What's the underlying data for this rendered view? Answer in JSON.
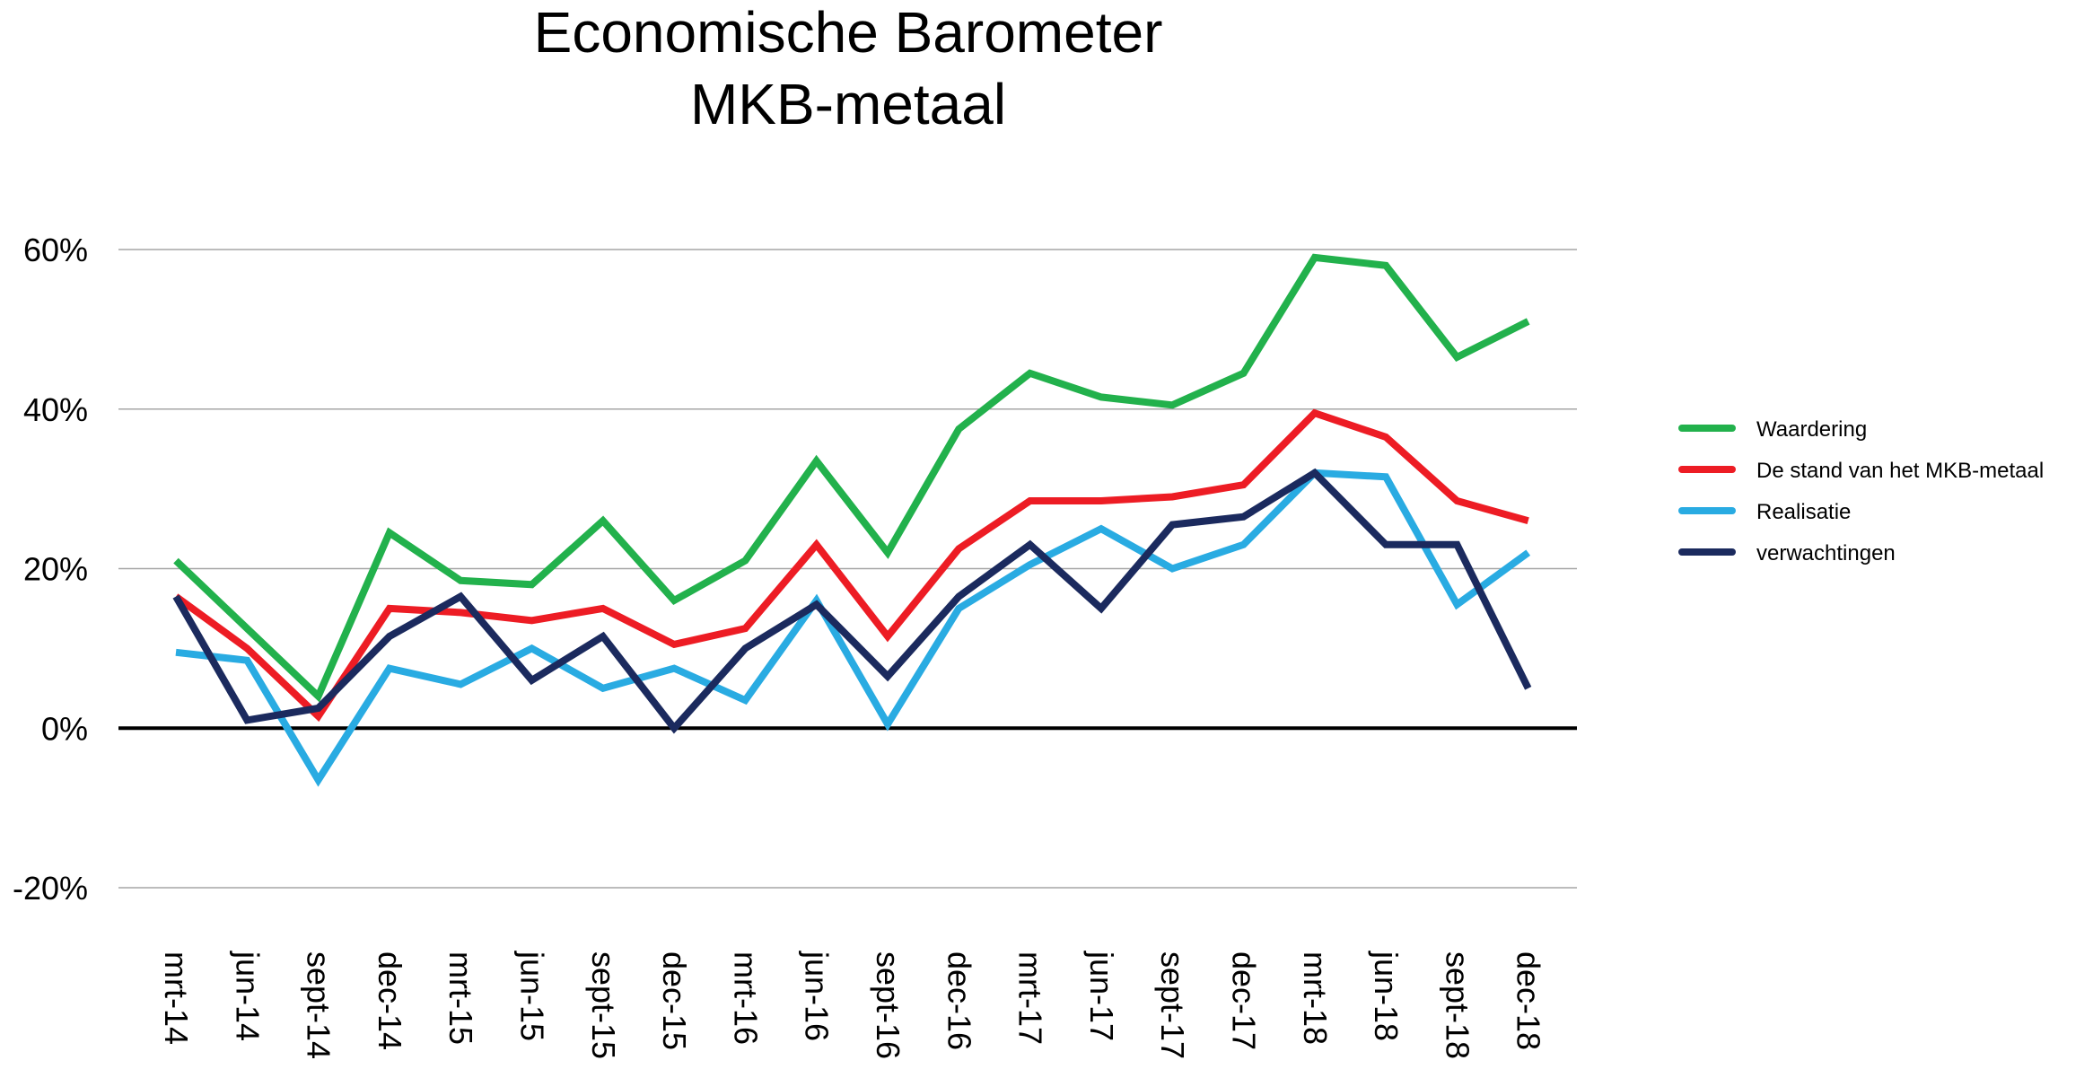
{
  "chart_data": {
    "type": "line",
    "title_lines": [
      "Economische Barometer",
      "MKB-metaal"
    ],
    "xlabel": "",
    "ylabel": "",
    "ylim": [
      -20,
      60
    ],
    "yticks": [
      -20,
      0,
      20,
      40,
      60
    ],
    "ytick_labels": [
      "-20%",
      "0%",
      "20%",
      "40%",
      "60%"
    ],
    "grid": true,
    "legend_position": "right",
    "categories": [
      "mrt-14",
      "jun-14",
      "sept-14",
      "dec-14",
      "mrt-15",
      "jun-15",
      "sept-15",
      "dec-15",
      "mrt-16",
      "jun-16",
      "sept-16",
      "dec-16",
      "mrt-17",
      "jun-17",
      "sept-17",
      "dec-17",
      "mrt-18",
      "jun-18",
      "sept-18",
      "dec-18"
    ],
    "series": [
      {
        "name": "Waardering",
        "color": "#22b14c",
        "values": [
          21,
          12.5,
          4,
          24.5,
          18.5,
          18,
          26,
          16,
          21,
          33.5,
          22,
          37.5,
          44.5,
          41.5,
          40.5,
          44.5,
          59,
          58,
          46.5,
          51
        ]
      },
      {
        "name": "De stand van het MKB-metaal",
        "color": "#ed1c24",
        "values": [
          16.5,
          10,
          1.5,
          15,
          14.5,
          13.5,
          15,
          10.5,
          12.5,
          23,
          11.5,
          22.5,
          28.5,
          28.5,
          29,
          30.5,
          39.5,
          36.5,
          28.5,
          26
        ]
      },
      {
        "name": "Realisatie",
        "color": "#29abe2",
        "values": [
          9.5,
          8.5,
          -6.5,
          7.5,
          5.5,
          10,
          5,
          7.5,
          3.5,
          16,
          0.5,
          15,
          20.5,
          25,
          20,
          23,
          32,
          31.5,
          15.5,
          22
        ]
      },
      {
        "name": "verwachtingen",
        "color": "#1b2a5e",
        "values": [
          16.5,
          1,
          2.5,
          11.5,
          16.5,
          6,
          11.5,
          0,
          10,
          15.5,
          6.5,
          16.5,
          23,
          15,
          25.5,
          26.5,
          32,
          23,
          23,
          5
        ]
      }
    ]
  }
}
